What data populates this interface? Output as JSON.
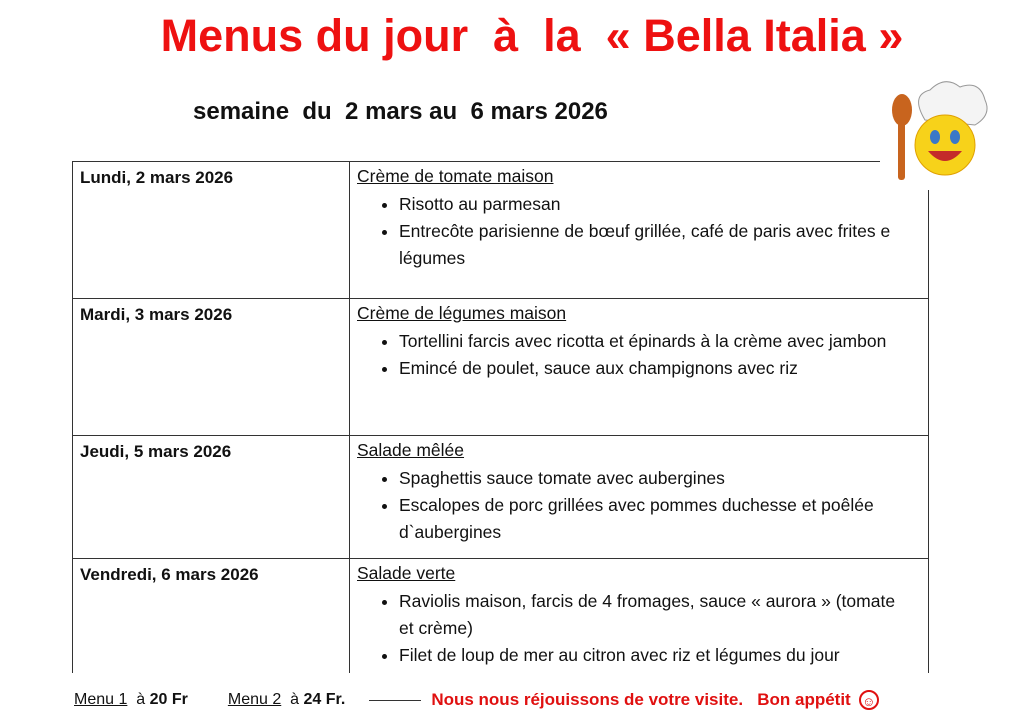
{
  "title": "Menus du jour  à  la  « Bella Italia »",
  "subtitle": "semaine  du  2 mars au  6 mars 2026",
  "days": [
    {
      "day": "Lundi, 2 mars 2026",
      "starter": "Crème de tomate maison",
      "dishes": [
        "Risotto au parmesan",
        "Entrecôte parisienne de bœuf grillée, café de paris avec frites e légumes"
      ]
    },
    {
      "day": "Mardi, 3 mars 2026",
      "starter": "Crème de légumes maison",
      "dishes": [
        "Tortellini farcis avec ricotta et épinards à la crème avec jambon",
        "Emincé de poulet, sauce aux champignons avec riz"
      ]
    },
    {
      "day": "Jeudi, 5 mars 2026",
      "starter": "Salade mêlée",
      "dishes": [
        "Spaghettis sauce tomate avec aubergines",
        "Escalopes de porc grillées avec pommes duchesse et poêlée d`aubergines"
      ]
    },
    {
      "day": "Vendredi, 6 mars 2026",
      "starter": "Salade verte",
      "dishes": [
        "Raviolis maison, farcis de 4 fromages, sauce « aurora » (tomate et crème)",
        "Filet de loup de mer au citron avec riz et légumes du jour"
      ]
    }
  ],
  "footer": {
    "menu1": "Menu 1",
    "a1": "à",
    "price1": "20 Fr",
    "menu2": "Menu 2",
    "a2": "à",
    "price2": "24 Fr.",
    "slogan": "Nous nous réjouissons de votre visite.   Bon appétit"
  },
  "colors": {
    "accent": "#ee1111"
  },
  "icons": [
    "chef-emoji-icon",
    "smiley-icon"
  ]
}
